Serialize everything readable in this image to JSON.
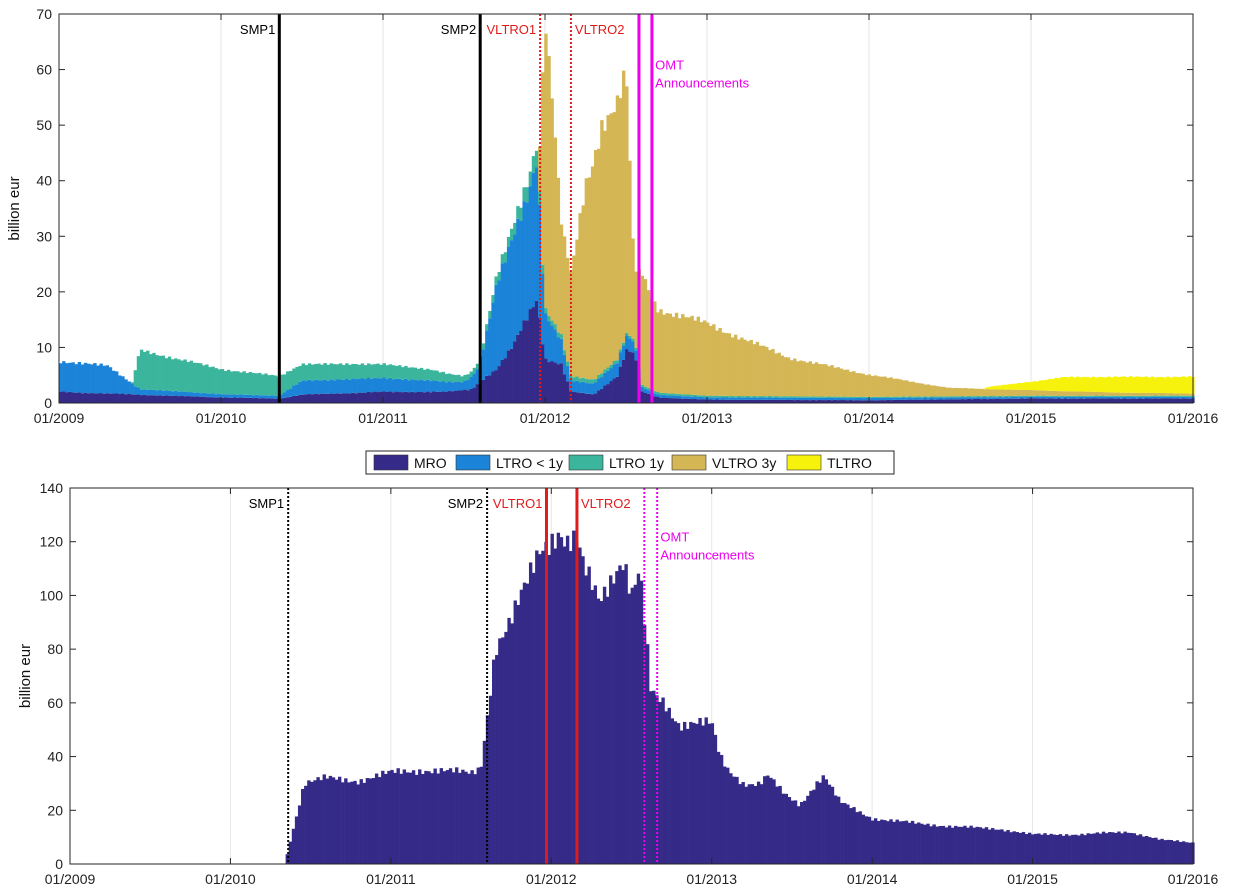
{
  "colors": {
    "MRO": "#352a87",
    "LTRO_lt1y": "#1c84d8",
    "LTRO_1y": "#3bb59c",
    "VLTRO_3y": "#d4b655",
    "TLTRO": "#f6f20c",
    "event_black": "#000000",
    "event_red": "#e01b1b",
    "event_magenta": "#ee00ee",
    "grid": "#e6e6e6"
  },
  "legend": {
    "items": [
      {
        "label": "MRO",
        "color_key": "MRO"
      },
      {
        "label": "LTRO < 1y",
        "color_key": "LTRO_lt1y"
      },
      {
        "label": "LTRO 1y",
        "color_key": "LTRO_1y"
      },
      {
        "label": "VLTRO 3y",
        "color_key": "VLTRO_3y"
      },
      {
        "label": "TLTRO",
        "color_key": "TLTRO"
      }
    ]
  },
  "chart_data": [
    {
      "type": "bar",
      "stacked": true,
      "ylabel": "billion eur",
      "xlim": [
        2009.0,
        2016.0
      ],
      "ylim": [
        0,
        70
      ],
      "yticks": [
        0,
        10,
        20,
        30,
        40,
        50,
        60,
        70
      ],
      "xticks": [
        "01/2009",
        "01/2010",
        "01/2011",
        "01/2012",
        "01/2013",
        "01/2014",
        "01/2015",
        "01/2016"
      ],
      "grid": "vertical",
      "bar_width_years": 0.0192,
      "events": [
        {
          "label": "SMP1",
          "x": 2010.36,
          "style": "solid",
          "color_key": "event_black",
          "label_side": "left"
        },
        {
          "label": "SMP2",
          "x": 2011.6,
          "style": "solid",
          "color_key": "event_black",
          "label_side": "left"
        },
        {
          "label": "VLTRO1",
          "x": 2011.97,
          "style": "dotted",
          "color_key": "event_red",
          "label_side": "left"
        },
        {
          "label": "VLTRO2",
          "x": 2012.16,
          "style": "dotted",
          "color_key": "event_red",
          "label_side": "right"
        },
        {
          "label": "OMT",
          "x": 2012.58,
          "style": "solid",
          "color_key": "event_magenta",
          "label_side": "none"
        },
        {
          "label": "",
          "x": 2012.66,
          "style": "solid",
          "color_key": "event_magenta",
          "label_side": "none"
        }
      ],
      "annotations": [
        {
          "lines": [
            "OMT",
            "Announcements"
          ],
          "x": 2012.68,
          "y": 60,
          "color_key": "event_magenta"
        }
      ],
      "series_stack_order": [
        "MRO",
        "LTRO < 1y",
        "LTRO 1y",
        "VLTRO 3y",
        "TLTRO"
      ],
      "series": [
        {
          "name": "MRO",
          "color_key": "MRO",
          "x": [
            2009.0,
            2009.5,
            2010.0,
            2010.36,
            2010.5,
            2011.0,
            2011.4,
            2011.55,
            2011.6,
            2011.7,
            2011.8,
            2011.9,
            2011.95,
            2012.0,
            2012.1,
            2012.16,
            2012.3,
            2012.45,
            2012.5,
            2012.55,
            2012.6,
            2012.7,
            2013.0,
            2014.0,
            2015.0,
            2016.0
          ],
          "values": [
            2.0,
            1.5,
            1.0,
            0.8,
            1.5,
            2.0,
            2.0,
            2.5,
            4.0,
            6.0,
            10.0,
            16.0,
            19.0,
            8.0,
            7.0,
            2.0,
            1.5,
            5.0,
            9.5,
            9.0,
            2.0,
            1.0,
            0.6,
            0.5,
            0.8,
            0.8
          ]
        },
        {
          "name": "LTRO < 1y",
          "color_key": "LTRO_lt1y",
          "x": [
            2009.0,
            2009.3,
            2009.5,
            2010.0,
            2010.36,
            2010.5,
            2011.0,
            2011.3,
            2011.5,
            2011.6,
            2011.7,
            2011.8,
            2011.9,
            2011.95,
            2012.0,
            2012.16,
            2012.3,
            2012.45,
            2012.5,
            2012.55,
            2012.6,
            2012.7,
            2013.0,
            2014.0,
            2015.0,
            2016.0
          ],
          "values": [
            5.5,
            5.0,
            1.0,
            0.6,
            0.5,
            2.5,
            2.5,
            2.0,
            1.5,
            3.0,
            15.0,
            20.0,
            22.0,
            25.0,
            8.0,
            2.0,
            2.0,
            2.5,
            2.5,
            2.0,
            0.8,
            0.5,
            0.4,
            0.4,
            0.3,
            0.3
          ]
        },
        {
          "name": "LTRO 1y",
          "color_key": "LTRO_1y",
          "x": [
            2009.0,
            2009.45,
            2009.5,
            2010.0,
            2010.36,
            2010.5,
            2011.0,
            2011.3,
            2011.5,
            2011.6,
            2011.8,
            2011.95,
            2012.0,
            2012.16,
            2012.5,
            2012.6,
            2013.0,
            2014.0,
            2015.0,
            2016.0
          ],
          "values": [
            0.0,
            0.0,
            7.0,
            4.5,
            3.5,
            3.0,
            2.5,
            2.0,
            1.0,
            1.0,
            2.0,
            3.0,
            1.0,
            0.8,
            0.5,
            0.4,
            0.3,
            0.2,
            0.2,
            0.2
          ]
        },
        {
          "name": "VLTRO 3y",
          "color_key": "VLTRO_3y",
          "x": [
            2009.0,
            2011.96,
            2012.0,
            2012.05,
            2012.1,
            2012.16,
            2012.25,
            2012.35,
            2012.45,
            2012.5,
            2012.55,
            2012.6,
            2012.65,
            2012.7,
            2013.0,
            2013.5,
            2014.0,
            2014.5,
            2015.0,
            2015.5,
            2016.0
          ],
          "values": [
            0.0,
            0.0,
            53.0,
            38.0,
            20.0,
            18.0,
            35.0,
            45.0,
            46.0,
            47.0,
            12.0,
            20.0,
            17.0,
            15.0,
            13.0,
            7.0,
            4.0,
            1.5,
            1.0,
            0.6,
            0.4
          ]
        },
        {
          "name": "TLTRO",
          "color_key": "TLTRO",
          "x": [
            2009.0,
            2014.7,
            2014.75,
            2015.0,
            2015.2,
            2015.5,
            2016.0
          ],
          "values": [
            0.0,
            0.0,
            0.5,
            1.5,
            2.5,
            2.8,
            3.0
          ]
        }
      ]
    },
    {
      "type": "bar",
      "ylabel": "billion eur",
      "xlim": [
        2009.0,
        2016.0
      ],
      "ylim": [
        0,
        140
      ],
      "yticks": [
        0,
        20,
        40,
        60,
        80,
        100,
        120,
        140
      ],
      "xticks": [
        "01/2009",
        "01/2010",
        "01/2011",
        "01/2012",
        "01/2013",
        "01/2014",
        "01/2015",
        "01/2016"
      ],
      "grid": "vertical",
      "bar_width_years": 0.0192,
      "events": [
        {
          "label": "SMP1",
          "x": 2010.36,
          "style": "dotted",
          "color_key": "event_black",
          "label_side": "left"
        },
        {
          "label": "SMP2",
          "x": 2011.6,
          "style": "dotted",
          "color_key": "event_black",
          "label_side": "left"
        },
        {
          "label": "VLTRO1",
          "x": 2011.97,
          "style": "solid",
          "color_key": "event_red",
          "label_side": "left"
        },
        {
          "label": "VLTRO2",
          "x": 2012.16,
          "style": "solid",
          "color_key": "event_red",
          "label_side": "right"
        },
        {
          "label": "OMT",
          "x": 2012.58,
          "style": "dotted",
          "color_key": "event_magenta",
          "label_side": "none"
        },
        {
          "label": "",
          "x": 2012.66,
          "style": "dotted",
          "color_key": "event_magenta",
          "label_side": "none"
        }
      ],
      "annotations": [
        {
          "lines": [
            "OMT",
            "Announcements"
          ],
          "x": 2012.68,
          "y": 120,
          "color_key": "event_magenta"
        }
      ],
      "series": [
        {
          "name": "",
          "color_key": "MRO",
          "x": [
            2009.0,
            2010.34,
            2010.37,
            2010.42,
            2010.46,
            2010.6,
            2010.8,
            2011.0,
            2011.2,
            2011.5,
            2011.56,
            2011.6,
            2011.65,
            2011.75,
            2011.85,
            2011.93,
            2011.97,
            2012.05,
            2012.1,
            2012.16,
            2012.2,
            2012.3,
            2012.4,
            2012.45,
            2012.5,
            2012.55,
            2012.6,
            2012.62,
            2012.65,
            2012.7,
            2012.8,
            2012.9,
            2013.0,
            2013.05,
            2013.1,
            2013.2,
            2013.3,
            2013.35,
            2013.45,
            2013.55,
            2013.65,
            2013.7,
            2013.8,
            2013.9,
            2014.0,
            2014.3,
            2014.5,
            2014.8,
            2015.0,
            2015.3,
            2015.6,
            2015.8,
            2016.0
          ],
          "values": [
            0,
            0,
            8,
            20,
            30,
            32,
            31,
            34,
            35,
            34,
            36,
            55,
            80,
            90,
            105,
            118,
            120,
            124,
            119,
            120,
            110,
            98,
            110,
            114,
            100,
            109,
            78,
            64,
            62,
            60,
            52,
            53,
            52,
            40,
            35,
            30,
            30,
            33,
            26,
            22,
            30,
            33,
            23,
            20,
            17,
            15,
            14,
            13,
            11,
            11,
            12,
            9,
            8
          ]
        }
      ]
    }
  ]
}
